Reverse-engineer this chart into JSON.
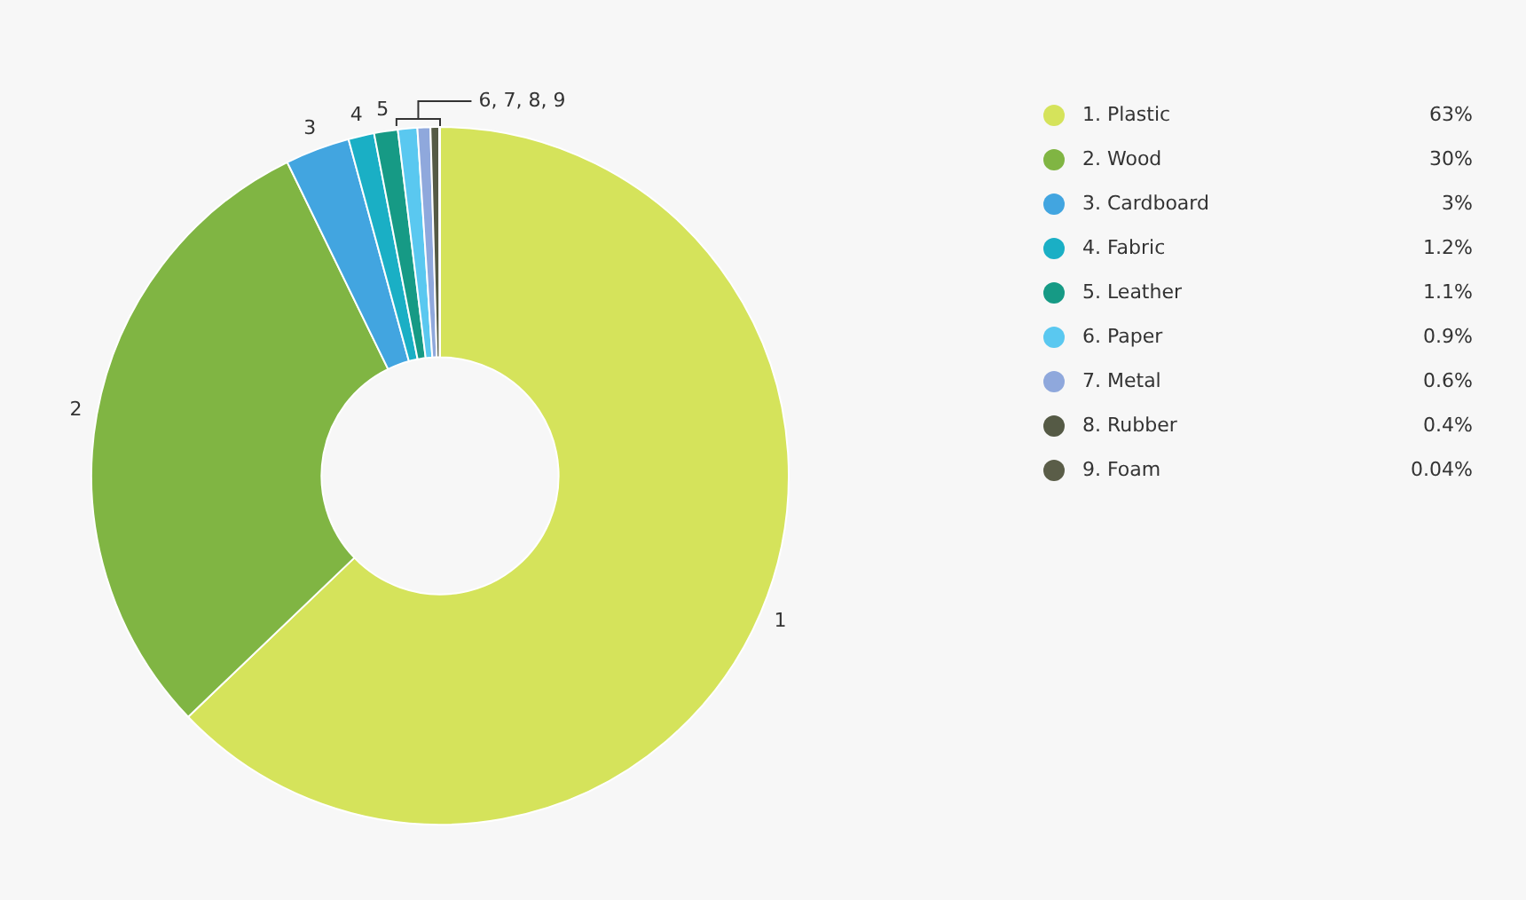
{
  "chart_data": {
    "type": "donut",
    "categories": [
      "1. Plastic",
      "2. Wood",
      "3. Cardboard",
      "4. Fabric",
      "5. Leather",
      "6. Paper",
      "7. Metal",
      "8. Rubber",
      "9. Foam"
    ],
    "values": [
      63,
      30,
      3,
      1.2,
      1.1,
      0.9,
      0.6,
      0.4,
      0.04
    ],
    "value_labels": [
      "63%",
      "30%",
      "3%",
      "1.2%",
      "1.1%",
      "0.9%",
      "0.6%",
      "0.4%",
      "0.04%"
    ],
    "colors": [
      "#d5e35b",
      "#80b543",
      "#42a5e0",
      "#1aafc5",
      "#169a85",
      "#5ac8f0",
      "#8fa8dc",
      "#555a45",
      "#5a5d48"
    ],
    "annotations": [
      {
        "text": "1",
        "x": "1. Plastic"
      },
      {
        "text": "2",
        "x": "2. Wood"
      },
      {
        "text": "3",
        "x": "3. Cardboard"
      },
      {
        "text": "4",
        "x": "4. Fabric"
      },
      {
        "text": "5",
        "x": "5. Leather"
      },
      {
        "text": "6, 7, 8, 9",
        "x": "6. Paper"
      }
    ],
    "legend": "right"
  }
}
